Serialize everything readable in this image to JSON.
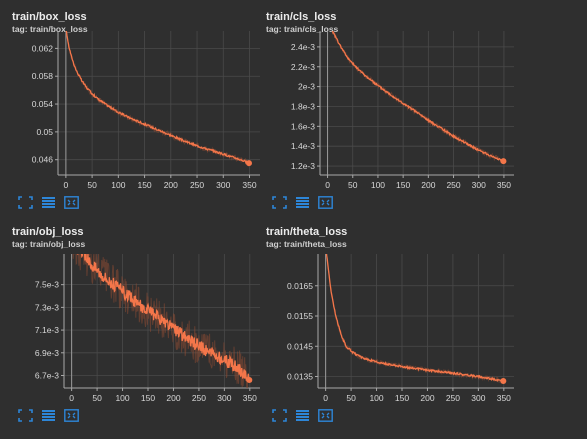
{
  "theme": {
    "background": "#2f2f2f",
    "grid": "#4a4a4a",
    "line": "#f4764a",
    "line_raw": "#8c4a33",
    "axis": "#a8a8a8",
    "icon": "#2d86d8"
  },
  "toolbar_icons": [
    "fullscreen-icon",
    "toggle-data-table-icon",
    "fit-domain-icon"
  ],
  "chart_data": [
    {
      "type": "line",
      "title": "train/box_loss",
      "tag": "tag: train/box_loss",
      "xlim": [
        -15,
        370
      ],
      "ylim": [
        0.0438,
        0.0645
      ],
      "xticks": [
        0,
        50,
        100,
        150,
        200,
        250,
        300,
        350
      ],
      "yticks": [
        0.046,
        0.05,
        0.054,
        0.058,
        0.062
      ],
      "ytick_labels": [
        "0.046",
        "0.05",
        "0.054",
        "0.058",
        "0.062"
      ],
      "series": [
        {
          "x": [
            0,
            5,
            10,
            15,
            20,
            30,
            40,
            50,
            60,
            75,
            100,
            125,
            150,
            175,
            200,
            225,
            250,
            275,
            300,
            325,
            340,
            349
          ],
          "y": [
            0.065,
            0.0625,
            0.061,
            0.0598,
            0.0588,
            0.0574,
            0.0563,
            0.0555,
            0.0548,
            0.054,
            0.0528,
            0.0519,
            0.0511,
            0.0503,
            0.0495,
            0.0487,
            0.048,
            0.0474,
            0.0468,
            0.0462,
            0.0458,
            0.0455
          ]
        }
      ]
    },
    {
      "type": "line",
      "title": "train/cls_loss",
      "tag": "tag: train/cls_loss",
      "xlim": [
        -15,
        370
      ],
      "ylim": [
        0.00111,
        0.00256
      ],
      "xticks": [
        0,
        50,
        100,
        150,
        200,
        250,
        300,
        350
      ],
      "yticks": [
        0.0012,
        0.0014,
        0.0016,
        0.0018,
        0.002,
        0.0022,
        0.0024
      ],
      "ytick_labels": [
        "1.2e-3",
        "1.4e-3",
        "1.6e-3",
        "1.8e-3",
        "2e-3",
        "2.2e-3",
        "2.4e-3"
      ],
      "series": [
        {
          "x": [
            0,
            10,
            20,
            30,
            40,
            50,
            60,
            75,
            100,
            125,
            150,
            175,
            200,
            225,
            250,
            275,
            300,
            325,
            340,
            349
          ],
          "y": [
            0.00265,
            0.00256,
            0.00246,
            0.00237,
            0.00229,
            0.00223,
            0.00218,
            0.00211,
            0.00201,
            0.00192,
            0.00183,
            0.00175,
            0.00166,
            0.00158,
            0.0015,
            0.00143,
            0.00136,
            0.0013,
            0.00127,
            0.00125
          ]
        }
      ]
    },
    {
      "type": "line",
      "title": "train/obj_loss",
      "tag": "tag: train/obj_loss",
      "xlim": [
        -15,
        370
      ],
      "ylim": [
        0.00659,
        0.00777
      ],
      "xticks": [
        0,
        50,
        100,
        150,
        200,
        250,
        300,
        350
      ],
      "yticks": [
        0.0067,
        0.0069,
        0.0071,
        0.0073,
        0.0075
      ],
      "ytick_labels": [
        "6.7e-3",
        "6.9e-3",
        "7.1e-3",
        "7.3e-3",
        "7.5e-3"
      ],
      "series": [
        {
          "x": [
            0,
            20,
            40,
            60,
            80,
            100,
            125,
            150,
            175,
            200,
            225,
            250,
            275,
            300,
            325,
            340,
            349
          ],
          "y": [
            0.00785,
            0.00778,
            0.00768,
            0.00759,
            0.00751,
            0.00744,
            0.00735,
            0.00727,
            0.00719,
            0.00711,
            0.00703,
            0.00696,
            0.0069,
            0.00684,
            0.00677,
            0.00672,
            0.00666
          ]
        }
      ]
    },
    {
      "type": "line",
      "title": "train/theta_loss",
      "tag": "tag: train/theta_loss",
      "xlim": [
        -15,
        370
      ],
      "ylim": [
        0.01312,
        0.01755
      ],
      "xticks": [
        0,
        50,
        100,
        150,
        200,
        250,
        300,
        350
      ],
      "yticks": [
        0.0135,
        0.0145,
        0.0155,
        0.0165
      ],
      "ytick_labels": [
        "0.0135",
        "0.0145",
        "0.0155",
        "0.0165"
      ],
      "series": [
        {
          "x": [
            0,
            5,
            10,
            15,
            20,
            25,
            30,
            40,
            50,
            60,
            75,
            100,
            125,
            150,
            175,
            200,
            250,
            300,
            330,
            349
          ],
          "y": [
            0.0178,
            0.0171,
            0.0164,
            0.0159,
            0.0155,
            0.0152,
            0.0149,
            0.0145,
            0.01435,
            0.01422,
            0.0141,
            0.01398,
            0.0139,
            0.01383,
            0.01377,
            0.01371,
            0.01361,
            0.0135,
            0.01341,
            0.01335
          ]
        }
      ]
    }
  ]
}
